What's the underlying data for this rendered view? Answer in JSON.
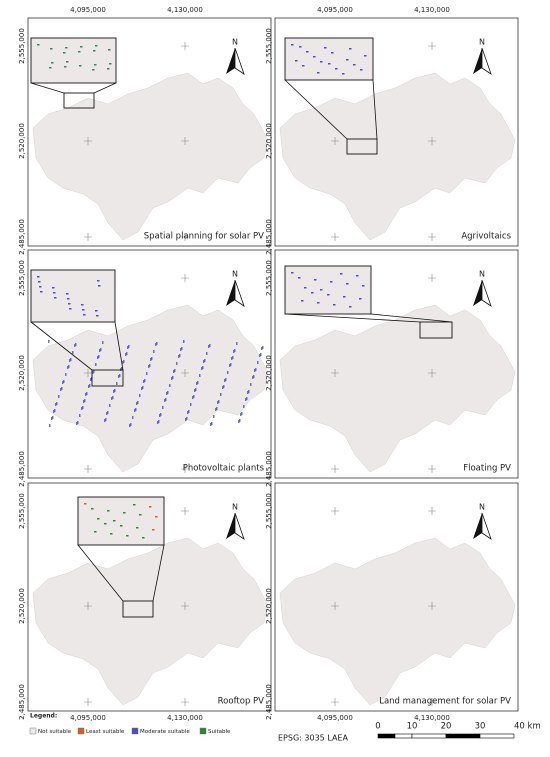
{
  "panels": [
    {
      "title": "Spatial planning for solar PV"
    },
    {
      "title": "Agrivoltaics"
    },
    {
      "title": "Photovoltaic plants"
    },
    {
      "title": "Floating PV"
    },
    {
      "title": "Rooftop PV"
    },
    {
      "title": "Land management for solar PV"
    }
  ],
  "north": "N",
  "x_labels": [
    "4,095,000",
    "4,130,000"
  ],
  "y_labels": [
    "2,555,000",
    "2,520,000",
    "2,485,000"
  ],
  "legend": {
    "title": "Legend:",
    "items": [
      {
        "label": "Not suitable",
        "color": "#ece8e8"
      },
      {
        "label": "Least suitable",
        "color": "#d4601c"
      },
      {
        "label": "Moderate suitable",
        "color": "#4a4ad8"
      },
      {
        "label": "Suitable",
        "color": "#2a8a2a"
      }
    ]
  },
  "epsg": "EPSG: 3035 LAEA",
  "scale_bar": [
    "0",
    "10",
    "20",
    "30",
    "40 km"
  ]
}
